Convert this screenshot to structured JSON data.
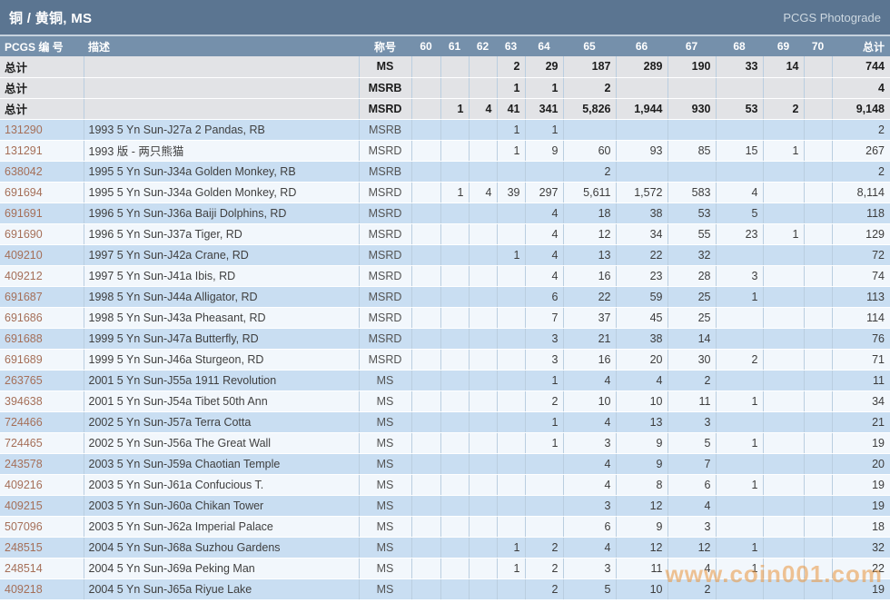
{
  "title": "铜 / 黄铜, MS",
  "brand": "PCGS Photograde",
  "watermark": "www.coin001.com",
  "table": {
    "headers": {
      "pcgs": "PCGS 编 号",
      "desc": "描述",
      "designation": "称号",
      "total": "总计"
    },
    "grade_columns": [
      "60",
      "61",
      "62",
      "63",
      "64",
      "65",
      "66",
      "67",
      "68",
      "69",
      "70"
    ],
    "summary_label": "总计",
    "summary_rows": [
      {
        "label": "总计",
        "desc": "",
        "designation": "MS",
        "grades": [
          "",
          "",
          "",
          "2",
          "29",
          "187",
          "289",
          "190",
          "33",
          "14",
          ""
        ],
        "total": "744"
      },
      {
        "label": "总计",
        "desc": "",
        "designation": "MSRB",
        "grades": [
          "",
          "",
          "",
          "1",
          "1",
          "2",
          "",
          "",
          "",
          "",
          ""
        ],
        "total": "4"
      },
      {
        "label": "总计",
        "desc": "",
        "designation": "MSRD",
        "grades": [
          "",
          "1",
          "4",
          "41",
          "341",
          "5,826",
          "1,944",
          "930",
          "53",
          "2",
          ""
        ],
        "total": "9,148"
      }
    ],
    "rows": [
      {
        "pcgs": "131290",
        "desc": "1993 5 Yn Sun-J27a 2 Pandas, RB",
        "designation": "MSRB",
        "grades": [
          "",
          "",
          "",
          "1",
          "1",
          "",
          "",
          "",
          "",
          "",
          ""
        ],
        "total": "2"
      },
      {
        "pcgs": "131291",
        "desc": "1993 版 - 两只熊猫",
        "designation": "MSRD",
        "grades": [
          "",
          "",
          "",
          "1",
          "9",
          "60",
          "93",
          "85",
          "15",
          "1",
          ""
        ],
        "total": "267"
      },
      {
        "pcgs": "638042",
        "desc": "1995 5 Yn Sun-J34a Golden Monkey, RB",
        "designation": "MSRB",
        "grades": [
          "",
          "",
          "",
          "",
          "",
          "2",
          "",
          "",
          "",
          "",
          ""
        ],
        "total": "2"
      },
      {
        "pcgs": "691694",
        "desc": "1995 5 Yn Sun-J34a Golden Monkey, RD",
        "designation": "MSRD",
        "grades": [
          "",
          "1",
          "4",
          "39",
          "297",
          "5,611",
          "1,572",
          "583",
          "4",
          "",
          ""
        ],
        "total": "8,114"
      },
      {
        "pcgs": "691691",
        "desc": "1996 5 Yn Sun-J36a Baiji Dolphins, RD",
        "designation": "MSRD",
        "grades": [
          "",
          "",
          "",
          "",
          "4",
          "18",
          "38",
          "53",
          "5",
          "",
          ""
        ],
        "total": "118"
      },
      {
        "pcgs": "691690",
        "desc": "1996 5 Yn Sun-J37a Tiger, RD",
        "designation": "MSRD",
        "grades": [
          "",
          "",
          "",
          "",
          "4",
          "12",
          "34",
          "55",
          "23",
          "1",
          ""
        ],
        "total": "129"
      },
      {
        "pcgs": "409210",
        "desc": "1997 5 Yn Sun-J42a Crane, RD",
        "designation": "MSRD",
        "grades": [
          "",
          "",
          "",
          "1",
          "4",
          "13",
          "22",
          "32",
          "",
          "",
          ""
        ],
        "total": "72"
      },
      {
        "pcgs": "409212",
        "desc": "1997 5 Yn Sun-J41a Ibis, RD",
        "designation": "MSRD",
        "grades": [
          "",
          "",
          "",
          "",
          "4",
          "16",
          "23",
          "28",
          "3",
          "",
          ""
        ],
        "total": "74"
      },
      {
        "pcgs": "691687",
        "desc": "1998 5 Yn Sun-J44a Alligator, RD",
        "designation": "MSRD",
        "grades": [
          "",
          "",
          "",
          "",
          "6",
          "22",
          "59",
          "25",
          "1",
          "",
          ""
        ],
        "total": "113"
      },
      {
        "pcgs": "691686",
        "desc": "1998 5 Yn Sun-J43a Pheasant, RD",
        "designation": "MSRD",
        "grades": [
          "",
          "",
          "",
          "",
          "7",
          "37",
          "45",
          "25",
          "",
          "",
          ""
        ],
        "total": "114"
      },
      {
        "pcgs": "691688",
        "desc": "1999 5 Yn Sun-J47a Butterfly, RD",
        "designation": "MSRD",
        "grades": [
          "",
          "",
          "",
          "",
          "3",
          "21",
          "38",
          "14",
          "",
          "",
          ""
        ],
        "total": "76"
      },
      {
        "pcgs": "691689",
        "desc": "1999 5 Yn Sun-J46a Sturgeon, RD",
        "designation": "MSRD",
        "grades": [
          "",
          "",
          "",
          "",
          "3",
          "16",
          "20",
          "30",
          "2",
          "",
          ""
        ],
        "total": "71"
      },
      {
        "pcgs": "263765",
        "desc": "2001 5 Yn Sun-J55a 1911 Revolution",
        "designation": "MS",
        "grades": [
          "",
          "",
          "",
          "",
          "1",
          "4",
          "4",
          "2",
          "",
          "",
          ""
        ],
        "total": "11"
      },
      {
        "pcgs": "394638",
        "desc": "2001 5 Yn Sun-J54a Tibet 50th Ann",
        "designation": "MS",
        "grades": [
          "",
          "",
          "",
          "",
          "2",
          "10",
          "10",
          "11",
          "1",
          "",
          ""
        ],
        "total": "34"
      },
      {
        "pcgs": "724466",
        "desc": "2002 5 Yn Sun-J57a Terra Cotta",
        "designation": "MS",
        "grades": [
          "",
          "",
          "",
          "",
          "1",
          "4",
          "13",
          "3",
          "",
          "",
          ""
        ],
        "total": "21"
      },
      {
        "pcgs": "724465",
        "desc": "2002 5 Yn Sun-J56a The Great Wall",
        "designation": "MS",
        "grades": [
          "",
          "",
          "",
          "",
          "1",
          "3",
          "9",
          "5",
          "1",
          "",
          ""
        ],
        "total": "19"
      },
      {
        "pcgs": "243578",
        "desc": "2003 5 Yn Sun-J59a Chaotian Temple",
        "designation": "MS",
        "grades": [
          "",
          "",
          "",
          "",
          "",
          "4",
          "9",
          "7",
          "",
          "",
          ""
        ],
        "total": "20"
      },
      {
        "pcgs": "409216",
        "desc": "2003 5 Yn Sun-J61a Confucious T.",
        "designation": "MS",
        "grades": [
          "",
          "",
          "",
          "",
          "",
          "4",
          "8",
          "6",
          "1",
          "",
          ""
        ],
        "total": "19"
      },
      {
        "pcgs": "409215",
        "desc": "2003 5 Yn Sun-J60a Chikan Tower",
        "designation": "MS",
        "grades": [
          "",
          "",
          "",
          "",
          "",
          "3",
          "12",
          "4",
          "",
          "",
          ""
        ],
        "total": "19"
      },
      {
        "pcgs": "507096",
        "desc": "2003 5 Yn Sun-J62a Imperial Palace",
        "designation": "MS",
        "grades": [
          "",
          "",
          "",
          "",
          "",
          "6",
          "9",
          "3",
          "",
          "",
          ""
        ],
        "total": "18"
      },
      {
        "pcgs": "248515",
        "desc": "2004 5 Yn Sun-J68a Suzhou Gardens",
        "designation": "MS",
        "grades": [
          "",
          "",
          "",
          "1",
          "2",
          "4",
          "12",
          "12",
          "1",
          "",
          ""
        ],
        "total": "32"
      },
      {
        "pcgs": "248514",
        "desc": "2004 5 Yn Sun-J69a Peking Man",
        "designation": "MS",
        "grades": [
          "",
          "",
          "",
          "1",
          "2",
          "3",
          "11",
          "4",
          "1",
          "",
          ""
        ],
        "total": "22"
      },
      {
        "pcgs": "409218",
        "desc": "2004 5 Yn Sun-J65a Riyue Lake",
        "designation": "MS",
        "grades": [
          "",
          "",
          "",
          "",
          "2",
          "5",
          "10",
          "2",
          "",
          "",
          ""
        ],
        "total": "19"
      }
    ]
  }
}
